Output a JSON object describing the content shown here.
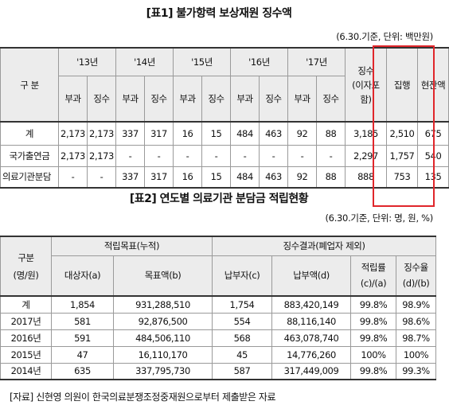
{
  "table1": {
    "title": "[표1] 불가항력 보상재원 징수액",
    "unit": "(6.30.기준, 단위: 백만원)",
    "row_header": "구 분",
    "years": [
      "'13년",
      "'14년",
      "'15년",
      "'16년",
      "'17년"
    ],
    "sub_headers": [
      "부과",
      "징수"
    ],
    "collection_header_lines": [
      "징수",
      "(이자포",
      "함)"
    ],
    "execution_header": "집행",
    "balance_header": "현잔액",
    "rows": [
      {
        "label": "계",
        "cells": [
          "2,173",
          "2,173",
          "337",
          "317",
          "16",
          "15",
          "484",
          "463",
          "92",
          "88",
          "3,185",
          "2,510",
          "675"
        ]
      },
      {
        "label": "국가출연금",
        "cells": [
          "2,173",
          "2,173",
          "-",
          "-",
          "-",
          "-",
          "-",
          "-",
          "-",
          "-",
          "2,297",
          "1,757",
          "540"
        ]
      },
      {
        "label": "의료기관분담",
        "cells": [
          "-",
          "-",
          "337",
          "317",
          "16",
          "15",
          "484",
          "463",
          "92",
          "88",
          "888",
          "753",
          "135"
        ]
      }
    ]
  },
  "table2": {
    "title": "[표2] 연도별 의료기관 분담금 적립현황",
    "unit": "(6.30.기준, 단위: 명, 원, %)",
    "row_header_lines": [
      "구분",
      "(명/원)"
    ],
    "group1": "적립목표(누적)",
    "group2": "징수결과(폐업자 제외)",
    "headers": [
      "대상자(a)",
      "목표액(b)",
      "납부자(c)",
      "납부액(d)"
    ],
    "rate1_lines": [
      "적립률",
      "(c)/(a)"
    ],
    "rate2_lines": [
      "징수율",
      "(d)/(b)"
    ],
    "rows": [
      {
        "label": "계",
        "cells": [
          "1,854",
          "931,288,510",
          "1,754",
          "883,420,149",
          "99.8%",
          "98.9%"
        ]
      },
      {
        "label": "2017년",
        "cells": [
          "581",
          "92,876,500",
          "554",
          "88,116,140",
          "99.8%",
          "98.6%"
        ]
      },
      {
        "label": "2016년",
        "cells": [
          "591",
          "484,506,110",
          "568",
          "463,078,740",
          "99.8%",
          "98.7%"
        ]
      },
      {
        "label": "2015년",
        "cells": [
          "47",
          "16,110,170",
          "45",
          "14,776,260",
          "100%",
          "100%"
        ]
      },
      {
        "label": "2014년",
        "cells": [
          "635",
          "337,795,730",
          "587",
          "317,449,009",
          "99.8%",
          "99.3%"
        ]
      }
    ]
  },
  "source": "[자료] 신현영 의원이 한국의료분쟁조정중재원으로부터 제출받은 자료",
  "colors": {
    "highlight_border": "#e0262b",
    "header_bg": "#ececec"
  }
}
